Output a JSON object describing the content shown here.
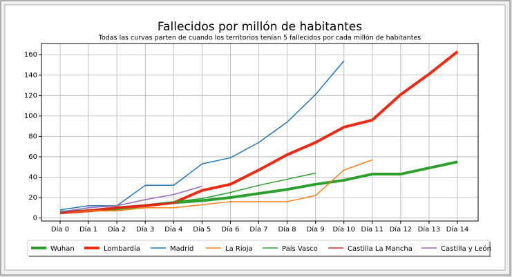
{
  "chart_data": {
    "type": "line",
    "title": "Fallecidos por millón de habitantes",
    "subtitle": "Todas las curvas parten de cuando los territorios tenían 5 fallecidos por cada millón de habitantes",
    "categories": [
      "Día 0",
      "Día 1",
      "Día 2",
      "Día 3",
      "Día 4",
      "Día 5",
      "Día 6",
      "Día 7",
      "Día 8",
      "Día 9",
      "Día 10",
      "Día 11",
      "Día 12",
      "Día 13",
      "Día 14"
    ],
    "ylim": [
      -3,
      171
    ],
    "yticks": [
      0,
      20,
      40,
      60,
      80,
      100,
      120,
      140,
      160
    ],
    "grid": true,
    "legend": "bottom",
    "series": [
      {
        "name": "Wuhan",
        "color": "#2ca02c",
        "linewidth": 4,
        "values": [
          6,
          7,
          9,
          12,
          15,
          17,
          20,
          24,
          28,
          33,
          37,
          43,
          43,
          49,
          55
        ]
      },
      {
        "name": "Lombardía",
        "color": "#ee2a12",
        "linewidth": 4,
        "values": [
          5,
          7,
          10,
          12,
          15,
          27,
          33,
          47,
          62,
          74,
          89,
          96,
          121,
          141,
          163
        ]
      },
      {
        "name": "Madrid",
        "color": "#1f77b4",
        "linewidth": 1.5,
        "values": [
          8,
          12,
          12,
          32,
          32,
          53,
          59,
          74,
          94,
          121,
          154,
          null,
          null,
          null,
          null
        ]
      },
      {
        "name": "La Rioja",
        "color": "#ff7f0e",
        "linewidth": 1.5,
        "values": [
          5,
          7,
          7,
          10,
          10,
          13,
          16,
          16,
          16,
          22,
          47,
          57,
          null,
          null,
          null
        ]
      },
      {
        "name": "País Vasco",
        "color": "#2ca02c",
        "linewidth": 1.5,
        "values": [
          5,
          8,
          10,
          13,
          16,
          19,
          25,
          32,
          38,
          44,
          null,
          null,
          null,
          null,
          null
        ]
      },
      {
        "name": "Castilla La Mancha",
        "color": "#d62728",
        "linewidth": 1.5,
        "values": [
          5,
          8,
          10,
          13,
          15,
          null,
          null,
          null,
          null,
          null,
          null,
          null,
          null,
          null,
          null
        ]
      },
      {
        "name": "Castilla y León",
        "color": "#9467bd",
        "linewidth": 1.5,
        "values": [
          6,
          10,
          12,
          18,
          23,
          31,
          null,
          null,
          null,
          null,
          null,
          null,
          null,
          null,
          null
        ]
      }
    ]
  }
}
